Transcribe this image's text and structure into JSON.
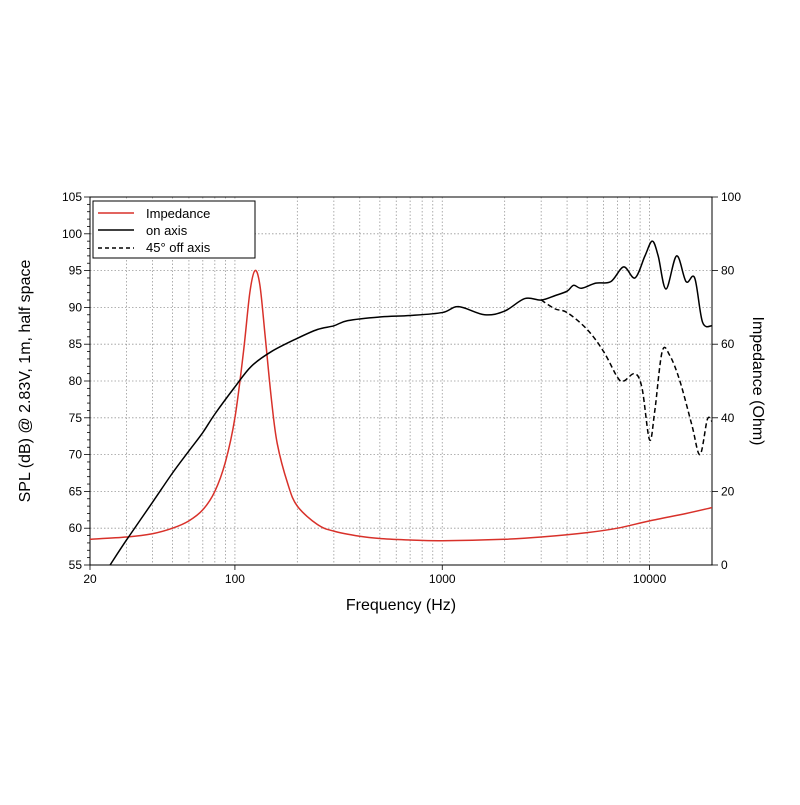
{
  "chart_data": {
    "type": "line",
    "xlabel": "Frequency (Hz)",
    "ylabel": "SPL (dB) @ 2.83V, 1m, half space",
    "y2label": "Impedance (Ohm)",
    "xscale": "log",
    "xlim": [
      20,
      20000
    ],
    "ylim": [
      55,
      105
    ],
    "y2lim": [
      0,
      100
    ],
    "xticks": [
      {
        "v": 20,
        "label": "20"
      },
      {
        "v": 100,
        "label": "100"
      },
      {
        "v": 1000,
        "label": "1000"
      },
      {
        "v": 10000,
        "label": "10000"
      }
    ],
    "yticks": [
      "55",
      "60",
      "65",
      "70",
      "75",
      "80",
      "85",
      "90",
      "95",
      "100",
      "105"
    ],
    "y2ticks": [
      "0",
      "20",
      "40",
      "60",
      "80",
      "100"
    ],
    "grid": true,
    "legend_position": "top-left",
    "colors": {
      "impedance": "#d8312a",
      "on_axis": "#000000",
      "off_axis": "#000000"
    },
    "series": [
      {
        "name": "Impedance",
        "axis": "right",
        "style": "solid",
        "color": "#d8312a",
        "points": [
          [
            20,
            7
          ],
          [
            30,
            7.6
          ],
          [
            40,
            8.5
          ],
          [
            50,
            10
          ],
          [
            60,
            12
          ],
          [
            70,
            15
          ],
          [
            80,
            20
          ],
          [
            90,
            28
          ],
          [
            100,
            40
          ],
          [
            110,
            58
          ],
          [
            118,
            74
          ],
          [
            125,
            80
          ],
          [
            132,
            76
          ],
          [
            140,
            62
          ],
          [
            150,
            45
          ],
          [
            160,
            33
          ],
          [
            180,
            22
          ],
          [
            200,
            16
          ],
          [
            250,
            11
          ],
          [
            300,
            9.2
          ],
          [
            400,
            7.8
          ],
          [
            500,
            7.2
          ],
          [
            700,
            6.8
          ],
          [
            1000,
            6.6
          ],
          [
            2000,
            7
          ],
          [
            3000,
            7.6
          ],
          [
            5000,
            8.8
          ],
          [
            7000,
            10
          ],
          [
            10000,
            12
          ],
          [
            15000,
            14
          ],
          [
            20000,
            15.6
          ]
        ]
      },
      {
        "name": "on axis",
        "axis": "left",
        "style": "solid",
        "color": "#000000",
        "points": [
          [
            25,
            55
          ],
          [
            30,
            58.4
          ],
          [
            40,
            63.5
          ],
          [
            50,
            67.5
          ],
          [
            60,
            70.5
          ],
          [
            70,
            73
          ],
          [
            80,
            75.5
          ],
          [
            100,
            79.2
          ],
          [
            120,
            82
          ],
          [
            150,
            84
          ],
          [
            200,
            85.8
          ],
          [
            250,
            87
          ],
          [
            300,
            87.5
          ],
          [
            350,
            88.2
          ],
          [
            500,
            88.7
          ],
          [
            700,
            88.9
          ],
          [
            1000,
            89.3
          ],
          [
            1200,
            90.1
          ],
          [
            1600,
            89
          ],
          [
            2000,
            89.5
          ],
          [
            2500,
            91.2
          ],
          [
            3000,
            91
          ],
          [
            3500,
            91.6
          ],
          [
            4000,
            92.2
          ],
          [
            4300,
            93
          ],
          [
            4700,
            92.6
          ],
          [
            5500,
            93.3
          ],
          [
            6500,
            93.5
          ],
          [
            7500,
            95.5
          ],
          [
            8500,
            94
          ],
          [
            9500,
            97
          ],
          [
            10300,
            99
          ],
          [
            11000,
            97
          ],
          [
            12000,
            92.5
          ],
          [
            13500,
            97
          ],
          [
            15000,
            93.5
          ],
          [
            16500,
            94
          ],
          [
            18000,
            88
          ],
          [
            20000,
            87.5
          ]
        ]
      },
      {
        "name": "45° off axis",
        "axis": "left",
        "style": "dashed",
        "color": "#000000",
        "points": [
          [
            3000,
            91
          ],
          [
            3500,
            89.8
          ],
          [
            4000,
            89.3
          ],
          [
            5000,
            87
          ],
          [
            6000,
            84
          ],
          [
            7000,
            80.5
          ],
          [
            7500,
            80
          ],
          [
            8500,
            81
          ],
          [
            9200,
            79
          ],
          [
            10000,
            72
          ],
          [
            10600,
            76
          ],
          [
            11500,
            84
          ],
          [
            12500,
            83.5
          ],
          [
            14000,
            80
          ],
          [
            16000,
            74
          ],
          [
            17500,
            70
          ],
          [
            19000,
            74.8
          ],
          [
            20000,
            74.5
          ]
        ]
      }
    ]
  }
}
